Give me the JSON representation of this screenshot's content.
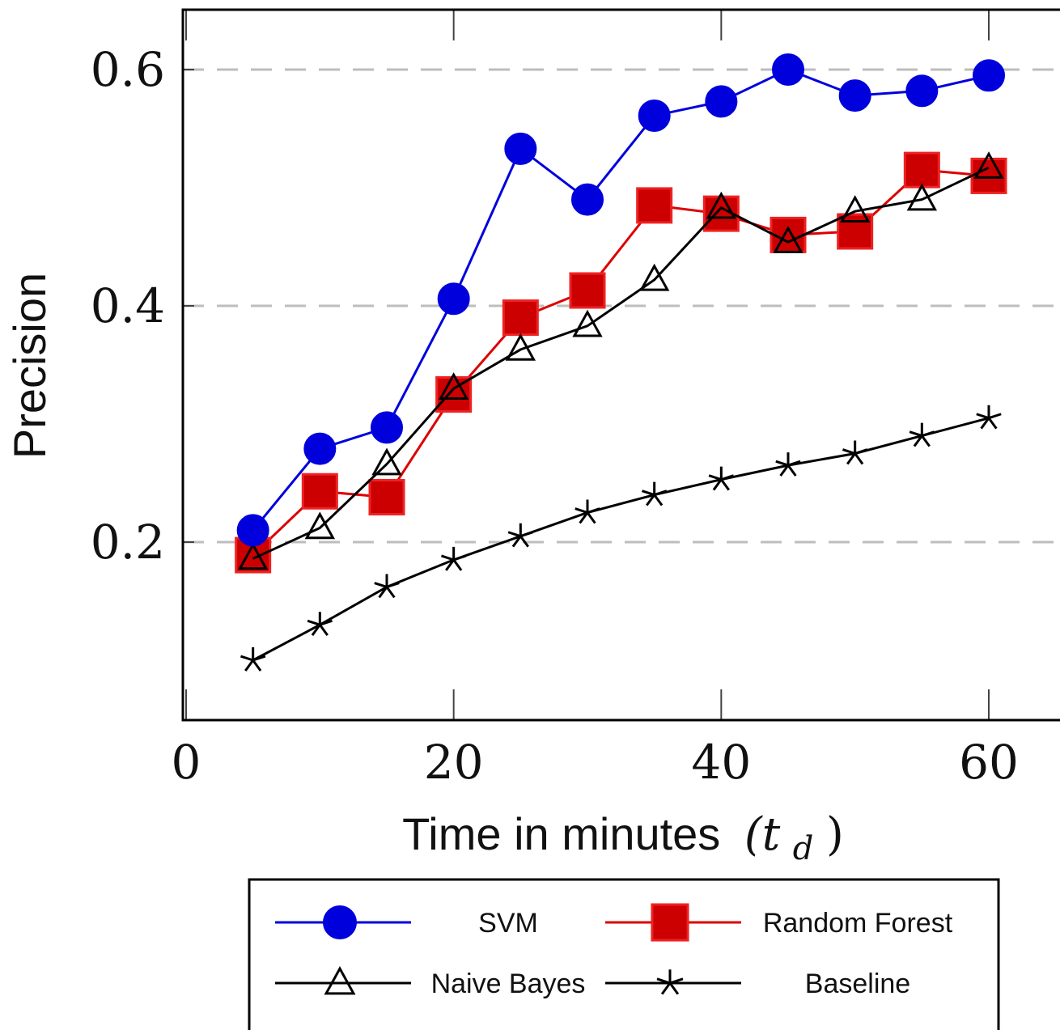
{
  "chart_data": {
    "type": "line",
    "title": "",
    "xlabel": "Time in minutes",
    "xlabel_symbol": "(t",
    "xlabel_subscript": "d",
    "xlabel_close": ")",
    "ylabel": "Precision",
    "xlim": [
      0,
      65
    ],
    "ylim": [
      0.065,
      0.65
    ],
    "xticks": [
      0,
      20,
      40,
      60
    ],
    "xtick_labels": [
      "0",
      "20",
      "40",
      "60"
    ],
    "yticks": [
      0.2,
      0.4,
      0.6
    ],
    "ytick_labels": [
      "0.2",
      "0.4",
      "0.6"
    ],
    "grid": "horizontal-dashed",
    "legend_position": "bottom",
    "x": [
      5,
      10,
      15,
      20,
      25,
      30,
      35,
      40,
      45,
      50,
      55,
      60
    ],
    "series": [
      {
        "name": "SVM",
        "color": "#0000dd",
        "marker": "circle",
        "values": [
          0.21,
          0.279,
          0.297,
          0.406,
          0.533,
          0.49,
          0.561,
          0.573,
          0.6,
          0.578,
          0.582,
          0.595
        ]
      },
      {
        "name": "Random Forest",
        "color": "#dd0000",
        "marker": "square",
        "values": [
          0.189,
          0.243,
          0.238,
          0.325,
          0.39,
          0.413,
          0.485,
          0.478,
          0.46,
          0.463,
          0.515,
          0.51
        ]
      },
      {
        "name": "Naive Bayes",
        "color": "#000000",
        "marker": "triangle",
        "values": [
          0.186,
          0.212,
          0.266,
          0.33,
          0.363,
          0.383,
          0.422,
          0.483,
          0.454,
          0.48,
          0.49,
          0.517
        ]
      },
      {
        "name": "Baseline",
        "color": "#000000",
        "marker": "star",
        "values": [
          0.1,
          0.13,
          0.162,
          0.185,
          0.205,
          0.225,
          0.24,
          0.253,
          0.265,
          0.275,
          0.29,
          0.305
        ]
      }
    ]
  }
}
